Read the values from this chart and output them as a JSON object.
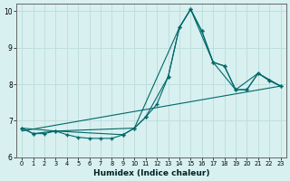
{
  "xlabel": "Humidex (Indice chaleur)",
  "bg_color": "#d8f0f0",
  "grid_color": "#c0dede",
  "line_color": "#006868",
  "xlim": [
    -0.5,
    23.5
  ],
  "ylim": [
    6,
    10.2
  ],
  "xticks": [
    0,
    1,
    2,
    3,
    4,
    5,
    6,
    7,
    8,
    9,
    10,
    11,
    12,
    13,
    14,
    15,
    16,
    17,
    18,
    19,
    20,
    21,
    22,
    23
  ],
  "yticks": [
    6,
    7,
    8,
    9,
    10
  ],
  "line1_x": [
    0,
    1,
    2,
    3,
    4,
    5,
    6,
    7,
    8,
    9,
    10,
    11,
    12,
    13,
    14,
    15,
    16,
    17,
    18,
    19,
    20,
    21,
    22,
    23
  ],
  "line1_y": [
    6.8,
    6.65,
    6.65,
    6.72,
    6.62,
    6.55,
    6.52,
    6.52,
    6.52,
    6.62,
    6.8,
    7.1,
    7.45,
    8.2,
    9.55,
    10.05,
    9.45,
    8.6,
    8.5,
    7.85,
    7.85,
    8.3,
    8.1,
    7.95
  ],
  "line2_x": [
    0,
    1,
    3,
    9,
    10,
    11,
    13,
    14,
    15,
    16,
    17,
    18,
    19,
    20,
    21,
    22,
    23
  ],
  "line2_y": [
    6.8,
    6.65,
    6.72,
    6.62,
    6.8,
    7.1,
    8.2,
    9.55,
    10.05,
    9.45,
    8.6,
    8.5,
    7.85,
    7.85,
    8.3,
    8.1,
    7.95
  ],
  "line3_x": [
    0,
    3,
    10,
    14,
    15,
    17,
    19,
    21,
    23
  ],
  "line3_y": [
    6.8,
    6.72,
    6.8,
    9.55,
    10.05,
    8.6,
    7.85,
    8.3,
    7.95
  ],
  "line5_x": [
    0,
    23
  ],
  "line5_y": [
    6.72,
    7.95
  ]
}
